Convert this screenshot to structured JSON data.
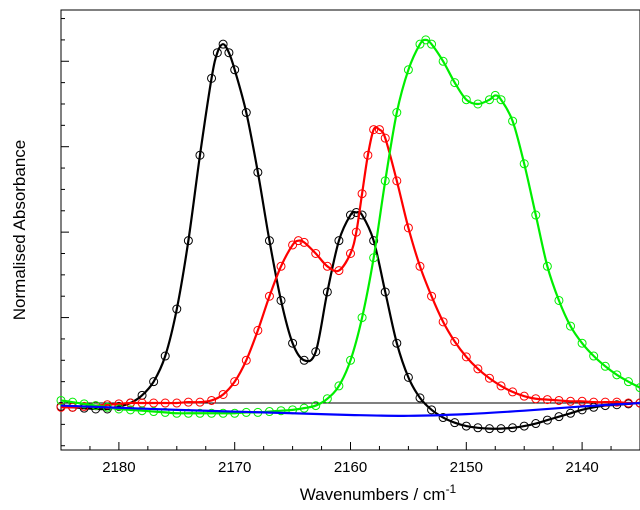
{
  "chart_data": {
    "type": "scatter",
    "title": "",
    "xlabel": "Wavenumbers / cm",
    "xlabel_superscript": "-1",
    "ylabel": "Normalised Absorbance",
    "xlim": [
      2185,
      2135
    ],
    "ylim": [
      -0.055,
      0.46
    ],
    "x_reversed": true,
    "x_ticks": [
      2180,
      2170,
      2160,
      2150,
      2140
    ],
    "y_tick_values": [
      0,
      0.1,
      0.2,
      0.3,
      0.4
    ],
    "y_tick_labels_shown": false,
    "grid": false,
    "legend": "none",
    "series": [
      {
        "color": "#000000",
        "marker": "circle",
        "points": [
          [
            2185,
            -0.004
          ],
          [
            2184,
            -0.005
          ],
          [
            2183,
            -0.006
          ],
          [
            2182,
            -0.007
          ],
          [
            2181,
            -0.007
          ],
          [
            2180,
            -0.004
          ],
          [
            2179,
            0.0
          ],
          [
            2178,
            0.009
          ],
          [
            2177,
            0.025
          ],
          [
            2176,
            0.055
          ],
          [
            2175,
            0.11
          ],
          [
            2174,
            0.19
          ],
          [
            2173,
            0.29
          ],
          [
            2172,
            0.38
          ],
          [
            2171.5,
            0.41
          ],
          [
            2171,
            0.42
          ],
          [
            2170.5,
            0.41
          ],
          [
            2170,
            0.39
          ],
          [
            2169,
            0.34
          ],
          [
            2168,
            0.27
          ],
          [
            2167,
            0.19
          ],
          [
            2166,
            0.12
          ],
          [
            2165,
            0.07
          ],
          [
            2164,
            0.05
          ],
          [
            2163,
            0.06
          ],
          [
            2162,
            0.13
          ],
          [
            2161,
            0.19
          ],
          [
            2160,
            0.22
          ],
          [
            2159.5,
            0.223
          ],
          [
            2159,
            0.22
          ],
          [
            2158,
            0.19
          ],
          [
            2157,
            0.13
          ],
          [
            2156,
            0.07
          ],
          [
            2155,
            0.03
          ],
          [
            2154,
            0.006
          ],
          [
            2153,
            -0.008
          ],
          [
            2152,
            -0.017
          ],
          [
            2151,
            -0.023
          ],
          [
            2150,
            -0.027
          ],
          [
            2149,
            -0.029
          ],
          [
            2148,
            -0.03
          ],
          [
            2147,
            -0.03
          ],
          [
            2146,
            -0.029
          ],
          [
            2145,
            -0.027
          ],
          [
            2144,
            -0.024
          ],
          [
            2143,
            -0.02
          ],
          [
            2142,
            -0.016
          ],
          [
            2141,
            -0.012
          ],
          [
            2140,
            -0.008
          ],
          [
            2139,
            -0.005
          ],
          [
            2138,
            -0.003
          ],
          [
            2137,
            -0.002
          ],
          [
            2136,
            -0.001
          ],
          [
            2135,
            0.0
          ]
        ]
      },
      {
        "color": "#ff0000",
        "marker": "circle",
        "points": [
          [
            2185,
            -0.005
          ],
          [
            2184,
            -0.005
          ],
          [
            2183,
            -0.004
          ],
          [
            2182,
            -0.003
          ],
          [
            2181,
            -0.002
          ],
          [
            2180,
            -0.001
          ],
          [
            2179,
            0.0
          ],
          [
            2178,
            0.0
          ],
          [
            2177,
            0.0
          ],
          [
            2176,
            0.0
          ],
          [
            2175,
            0.0
          ],
          [
            2174,
            0.001
          ],
          [
            2173,
            0.001
          ],
          [
            2172,
            0.003
          ],
          [
            2171,
            0.01
          ],
          [
            2170,
            0.025
          ],
          [
            2169,
            0.05
          ],
          [
            2168,
            0.085
          ],
          [
            2167,
            0.125
          ],
          [
            2166,
            0.16
          ],
          [
            2165,
            0.185
          ],
          [
            2164.5,
            0.19
          ],
          [
            2164,
            0.188
          ],
          [
            2163,
            0.175
          ],
          [
            2162,
            0.16
          ],
          [
            2161,
            0.155
          ],
          [
            2160,
            0.175
          ],
          [
            2159.5,
            0.2
          ],
          [
            2159,
            0.245
          ],
          [
            2158.5,
            0.29
          ],
          [
            2158,
            0.32
          ],
          [
            2157.5,
            0.32
          ],
          [
            2157,
            0.31
          ],
          [
            2156,
            0.26
          ],
          [
            2155,
            0.205
          ],
          [
            2154,
            0.16
          ],
          [
            2153,
            0.125
          ],
          [
            2152,
            0.095
          ],
          [
            2151,
            0.072
          ],
          [
            2150,
            0.054
          ],
          [
            2149,
            0.04
          ],
          [
            2148,
            0.029
          ],
          [
            2147,
            0.02
          ],
          [
            2146,
            0.013
          ],
          [
            2145,
            0.008
          ],
          [
            2144,
            0.005
          ],
          [
            2143,
            0.004
          ],
          [
            2142,
            0.003
          ],
          [
            2141,
            0.002
          ],
          [
            2140,
            0.002
          ],
          [
            2139,
            0.001
          ],
          [
            2138,
            0.001
          ],
          [
            2137,
            0.001
          ],
          [
            2136,
            0.0
          ],
          [
            2135,
            0.0
          ]
        ]
      },
      {
        "color": "#00ee00",
        "marker": "circle",
        "points": [
          [
            2185,
            0.003
          ],
          [
            2184,
            0.001
          ],
          [
            2183,
            -0.001
          ],
          [
            2182,
            -0.003
          ],
          [
            2181,
            -0.005
          ],
          [
            2180,
            -0.007
          ],
          [
            2179,
            -0.008
          ],
          [
            2178,
            -0.009
          ],
          [
            2177,
            -0.01
          ],
          [
            2176,
            -0.011
          ],
          [
            2175,
            -0.012
          ],
          [
            2174,
            -0.012
          ],
          [
            2173,
            -0.012
          ],
          [
            2172,
            -0.012
          ],
          [
            2171,
            -0.012
          ],
          [
            2170,
            -0.012
          ],
          [
            2169,
            -0.011
          ],
          [
            2168,
            -0.011
          ],
          [
            2167,
            -0.01
          ],
          [
            2166,
            -0.009
          ],
          [
            2165,
            -0.008
          ],
          [
            2164,
            -0.006
          ],
          [
            2163,
            -0.003
          ],
          [
            2162,
            0.005
          ],
          [
            2161,
            0.02
          ],
          [
            2160,
            0.05
          ],
          [
            2159,
            0.1
          ],
          [
            2158,
            0.17
          ],
          [
            2157,
            0.26
          ],
          [
            2156,
            0.34
          ],
          [
            2155,
            0.39
          ],
          [
            2154,
            0.42
          ],
          [
            2153.5,
            0.425
          ],
          [
            2153,
            0.42
          ],
          [
            2152,
            0.4
          ],
          [
            2151,
            0.375
          ],
          [
            2150,
            0.355
          ],
          [
            2149,
            0.35
          ],
          [
            2148,
            0.355
          ],
          [
            2147.5,
            0.36
          ],
          [
            2147,
            0.355
          ],
          [
            2146,
            0.33
          ],
          [
            2145,
            0.28
          ],
          [
            2144,
            0.22
          ],
          [
            2143,
            0.16
          ],
          [
            2142,
            0.12
          ],
          [
            2141,
            0.09
          ],
          [
            2140,
            0.07
          ],
          [
            2139,
            0.055
          ],
          [
            2138,
            0.043
          ],
          [
            2137,
            0.033
          ],
          [
            2136,
            0.025
          ],
          [
            2135,
            0.018
          ]
        ]
      },
      {
        "color": "#0000ff",
        "marker": "none",
        "points": [
          [
            2185,
            -0.003
          ],
          [
            2175,
            -0.008
          ],
          [
            2165,
            -0.012
          ],
          [
            2160,
            -0.014
          ],
          [
            2155,
            -0.015
          ],
          [
            2150,
            -0.013
          ],
          [
            2145,
            -0.009
          ],
          [
            2140,
            -0.004
          ],
          [
            2135,
            0.0
          ]
        ]
      }
    ]
  }
}
